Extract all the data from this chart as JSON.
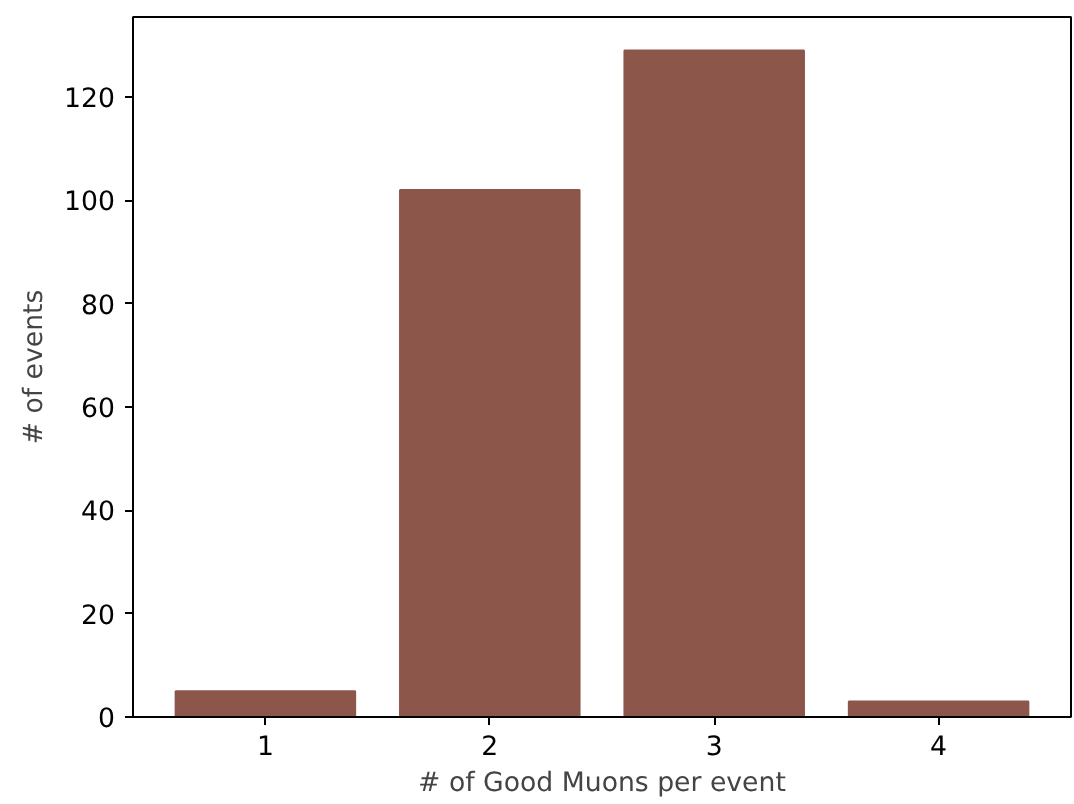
{
  "chart_data": {
    "type": "bar",
    "xlabel": "# of Good Muons per event",
    "ylabel": "# of events",
    "x": [
      1,
      2,
      3,
      4
    ],
    "series": [
      {
        "color": "#8c564b",
        "values": [
          5,
          102,
          129,
          3
        ]
      }
    ],
    "xlim": [
      0.41,
      4.59
    ],
    "xticks": [
      1,
      2,
      3,
      4
    ],
    "ylim": [
      0,
      135.5
    ],
    "yticks": [
      0,
      20,
      40,
      60,
      80,
      100,
      120
    ],
    "grid": false
  }
}
